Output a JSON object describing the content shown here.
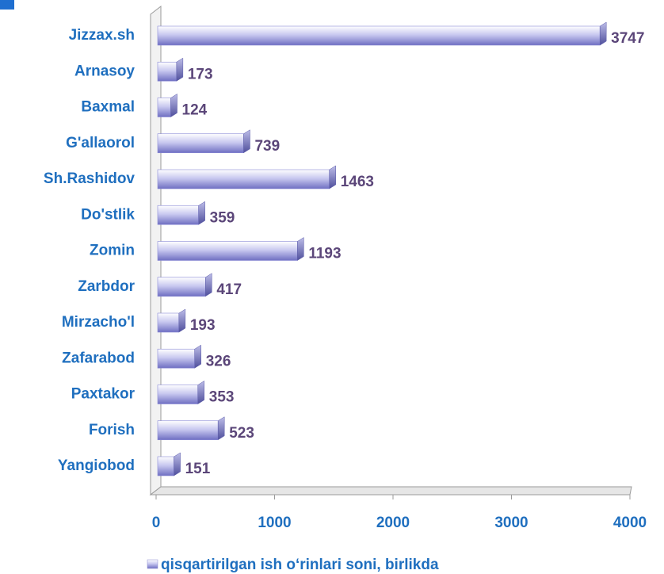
{
  "chart_data": {
    "type": "bar",
    "orientation": "horizontal",
    "categories": [
      "Jizzax.sh",
      "Arnasoy",
      "Baxmal",
      "G'allaorol",
      "Sh.Rashidov",
      "Do'stlik",
      "Zomin",
      "Zarbdor",
      "Mirzacho'l",
      "Zafarabod",
      "Paxtakor",
      "Forish",
      "Yangiobod"
    ],
    "series": [
      {
        "name": "qisqartirilgan ish o‘rinlari soni, birlikda",
        "color": "#8a8ad6",
        "values": [
          3747,
          173,
          124,
          739,
          1463,
          359,
          1193,
          417,
          193,
          326,
          353,
          523,
          151
        ]
      }
    ],
    "xlim": [
      0,
      4000
    ],
    "xticks": [
      0,
      1000,
      2000,
      3000,
      4000
    ],
    "legend": "bottom"
  }
}
